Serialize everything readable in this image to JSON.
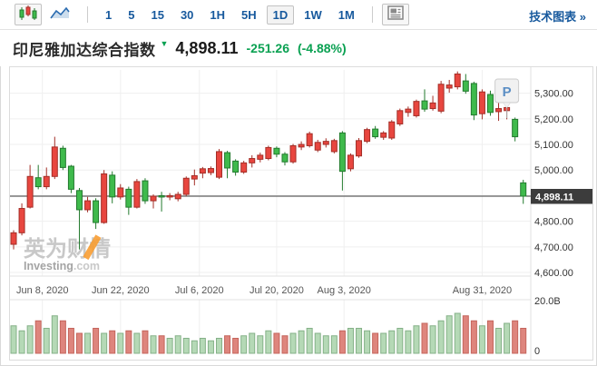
{
  "toolbar": {
    "chart_types": [
      {
        "name": "candlestick-chart",
        "selected": true
      },
      {
        "name": "line-chart",
        "selected": false
      }
    ],
    "timeframes": [
      {
        "label": "1",
        "selected": false
      },
      {
        "label": "5",
        "selected": false
      },
      {
        "label": "15",
        "selected": false
      },
      {
        "label": "30",
        "selected": false
      },
      {
        "label": "1H",
        "selected": false
      },
      {
        "label": "5H",
        "selected": false
      },
      {
        "label": "1D",
        "selected": true
      },
      {
        "label": "1W",
        "selected": false
      },
      {
        "label": "1M",
        "selected": false
      }
    ],
    "news_button_name": "news-panel",
    "tech_link": {
      "label": "技术图表",
      "arrow": "»"
    }
  },
  "header": {
    "title": "印尼雅加达综合指数",
    "direction": "down",
    "price": "4,898.11",
    "change": "-251.26",
    "change_pct": "(-4.88%)",
    "change_color": "#0aa152"
  },
  "watermark": {
    "cn": "英为财情",
    "en_bold": "Investing",
    "en_light": ".com"
  },
  "chart_data": {
    "type": "candlestick",
    "title": "印尼雅加达综合指数",
    "last_price": 4898.11,
    "change": -251.26,
    "change_pct": -4.88,
    "ylim": [
      4560,
      5400
    ],
    "grid": true,
    "y_ticks": [
      5300,
      5200,
      5100,
      5000,
      4900,
      4800,
      4700,
      4600
    ],
    "y_tick_labels": [
      "5,300.00",
      "5,200.00",
      "5,100.00",
      "5,000.00",
      "4,900.00",
      "4,800.00",
      "4,700.00",
      "4,600.00"
    ],
    "price_line": 4898.11,
    "price_line_label": "4,898.11",
    "x_ticks": [
      {
        "label": "Jun 8, 2020",
        "index": 3.5
      },
      {
        "label": "Jun 22, 2020",
        "index": 13
      },
      {
        "label": "Jul 6, 2020",
        "index": 22.6
      },
      {
        "label": "Jul 20, 2020",
        "index": 32
      },
      {
        "label": "Aug 3, 2020",
        "index": 40.2
      },
      {
        "label": "Aug 31, 2020",
        "index": 57
      }
    ],
    "volume_axis_labels": [
      "20.0B",
      "0"
    ],
    "volume_max_b": 20,
    "event_marker": {
      "label": "P",
      "candle_index": 60
    },
    "candles_format": [
      "open",
      "high",
      "low",
      "close",
      "volume_B"
    ],
    "candles": [
      [
        4710,
        4765,
        4690,
        4755,
        11
      ],
      [
        4755,
        4870,
        4745,
        4850,
        9
      ],
      [
        4855,
        5020,
        4850,
        4975,
        11
      ],
      [
        4970,
        5020,
        4925,
        4935,
        13
      ],
      [
        4935,
        5010,
        4925,
        4975,
        10
      ],
      [
        4975,
        5130,
        4965,
        5090,
        15
      ],
      [
        5085,
        5095,
        5000,
        5010,
        13
      ],
      [
        5015,
        5020,
        4910,
        4925,
        10
      ],
      [
        4920,
        4930,
        4690,
        4845,
        8
      ],
      [
        4845,
        4895,
        4835,
        4880,
        8
      ],
      [
        4880,
        4890,
        4770,
        4795,
        10
      ],
      [
        4795,
        5000,
        4790,
        4985,
        8
      ],
      [
        4980,
        4995,
        4870,
        4895,
        9
      ],
      [
        4895,
        4945,
        4885,
        4930,
        8
      ],
      [
        4925,
        4935,
        4825,
        4855,
        9
      ],
      [
        4855,
        4965,
        4850,
        4955,
        8
      ],
      [
        4958,
        4968,
        4868,
        4880,
        9
      ],
      [
        4880,
        4905,
        4850,
        4898,
        7
      ],
      [
        4900,
        4915,
        4838,
        4895,
        7
      ],
      [
        4895,
        4910,
        4882,
        4900,
        6
      ],
      [
        4888,
        4915,
        4878,
        4905,
        7
      ],
      [
        4905,
        4975,
        4898,
        4968,
        6
      ],
      [
        4965,
        5002,
        4940,
        4978,
        5
      ],
      [
        4988,
        5012,
        4968,
        5005,
        6
      ],
      [
        4990,
        5014,
        4980,
        5006,
        5
      ],
      [
        4972,
        5082,
        4965,
        5072,
        6
      ],
      [
        5068,
        5075,
        4968,
        5008,
        7
      ],
      [
        5035,
        5042,
        4978,
        4992,
        6
      ],
      [
        4992,
        5036,
        4985,
        5028,
        7
      ],
      [
        5028,
        5058,
        5010,
        5045,
        8
      ],
      [
        5042,
        5068,
        5030,
        5058,
        7
      ],
      [
        5045,
        5095,
        5038,
        5088,
        9
      ],
      [
        5085,
        5092,
        5050,
        5062,
        8
      ],
      [
        5062,
        5070,
        5018,
        5032,
        7
      ],
      [
        5032,
        5102,
        5025,
        5095,
        8
      ],
      [
        5090,
        5112,
        5078,
        5100,
        9
      ],
      [
        5095,
        5150,
        5088,
        5142,
        10
      ],
      [
        5078,
        5118,
        5070,
        5108,
        8
      ],
      [
        5100,
        5124,
        5088,
        5112,
        7
      ],
      [
        5072,
        5122,
        5065,
        5115,
        7
      ],
      [
        5145,
        5152,
        4920,
        4995,
        9
      ],
      [
        5005,
        5065,
        4995,
        5058,
        10
      ],
      [
        5055,
        5125,
        5048,
        5115,
        10
      ],
      [
        5112,
        5165,
        5105,
        5158,
        9
      ],
      [
        5160,
        5172,
        5122,
        5130,
        8
      ],
      [
        5128,
        5152,
        5118,
        5145,
        8
      ],
      [
        5125,
        5195,
        5118,
        5188,
        9
      ],
      [
        5180,
        5240,
        5172,
        5232,
        10
      ],
      [
        5225,
        5248,
        5208,
        5238,
        9
      ],
      [
        5212,
        5275,
        5205,
        5268,
        11
      ],
      [
        5270,
        5315,
        5228,
        5238,
        12
      ],
      [
        5240,
        5290,
        5232,
        5262,
        11
      ],
      [
        5230,
        5348,
        5222,
        5335,
        13
      ],
      [
        5320,
        5352,
        5302,
        5332,
        15
      ],
      [
        5325,
        5385,
        5315,
        5375,
        16
      ],
      [
        5348,
        5375,
        5298,
        5308,
        15
      ],
      [
        5338,
        5345,
        5195,
        5215,
        13
      ],
      [
        5220,
        5315,
        5198,
        5305,
        11
      ],
      [
        5295,
        5310,
        5212,
        5225,
        13
      ],
      [
        5228,
        5262,
        5192,
        5240,
        10
      ],
      [
        5232,
        5250,
        5198,
        5244,
        12
      ],
      [
        5198,
        5205,
        5112,
        5130,
        13
      ],
      [
        4950,
        4962,
        4868,
        4898,
        10
      ]
    ],
    "colors": {
      "up": "#e8463f",
      "up_border": "#a32e27",
      "down": "#3fba4c",
      "down_border": "#237a2e",
      "vol_up": "#b5d9b6",
      "vol_up_border": "#85b188",
      "vol_down": "#de857d",
      "vol_down_border": "#c4655c",
      "price_line": "#3a3a3a",
      "price_tag_bg": "#3c3c3c",
      "grid": "#efefef",
      "axis_text": "#333333",
      "date_text": "#555555",
      "accent_blue": "#17599d",
      "marker_letter": "#5b8ec4"
    }
  }
}
